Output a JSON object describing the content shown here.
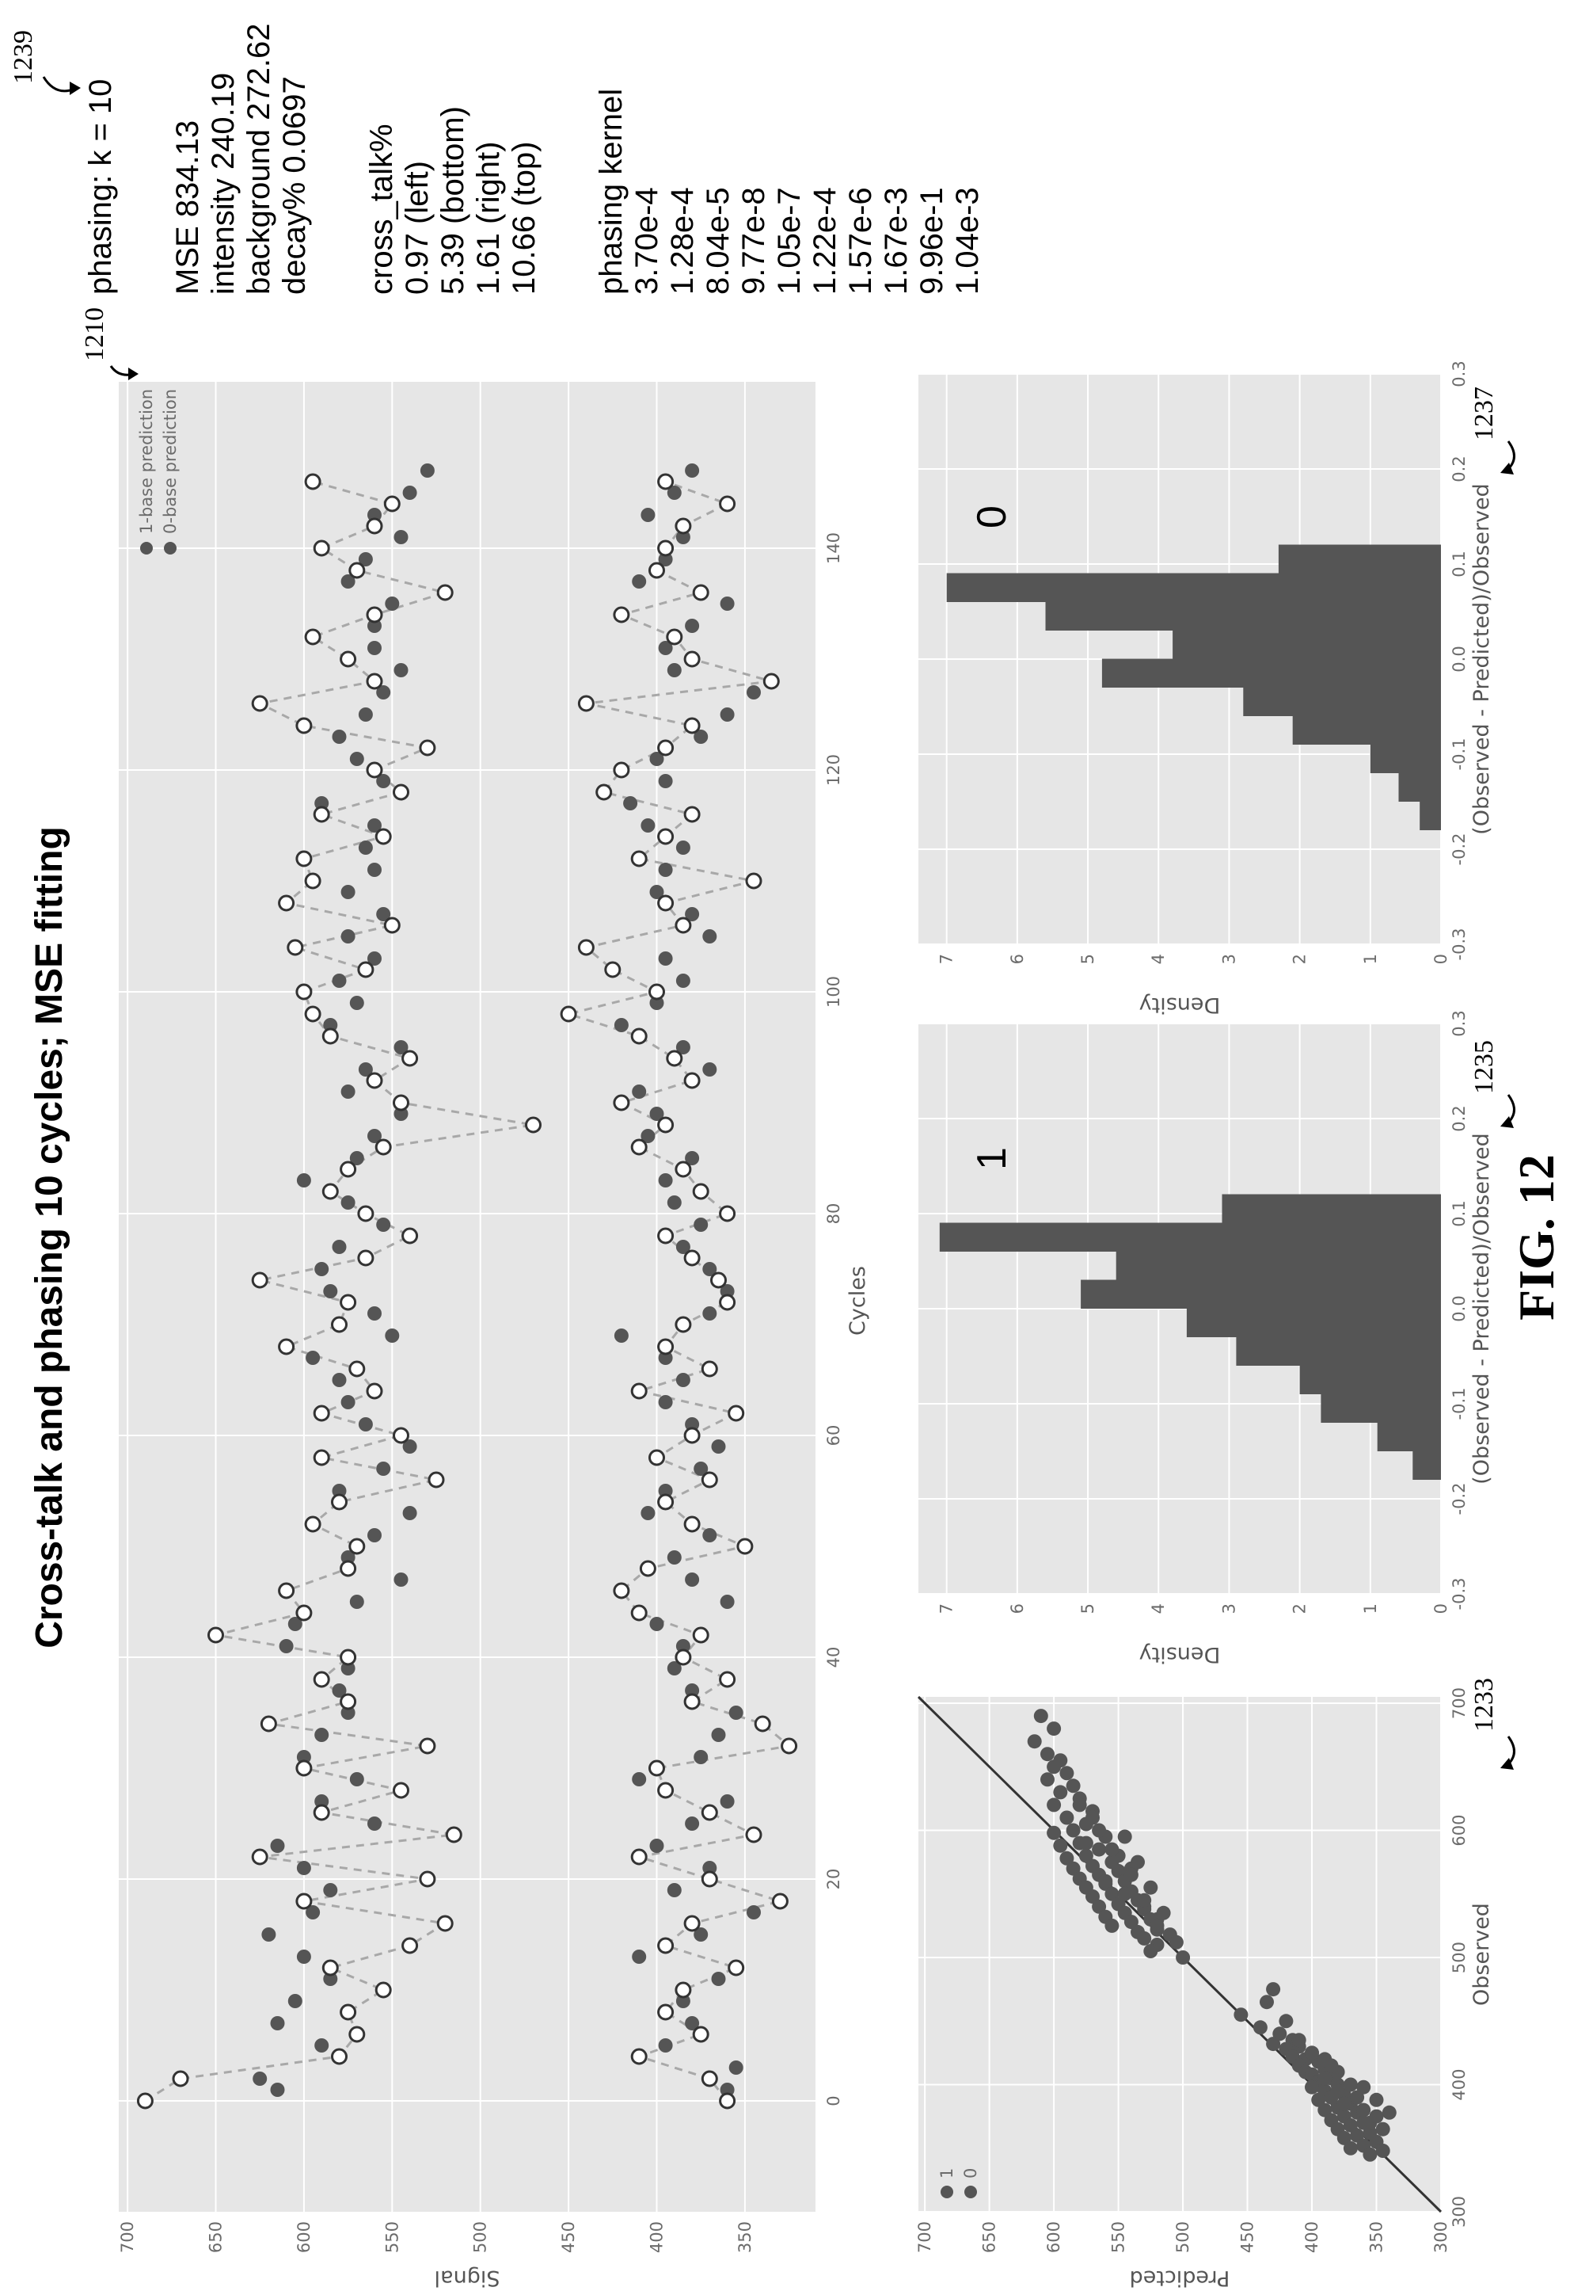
{
  "title": "Cross-talk and phasing 10 cycles; MSE fitting",
  "figure_label": "FIG. 12",
  "reference_numerals": {
    "top_plot": "1210",
    "scatter": "1233",
    "hist_1": "1235",
    "hist_0": "1237",
    "params": "1239"
  },
  "params": {
    "phasing_k": "phasing: k = 10",
    "fit": [
      "MSE 834.13",
      "intensity 240.19",
      "background 272.62",
      "decay% 0.0697"
    ],
    "cross_talk": [
      "cross_talk%",
      "0.97 (left)",
      "5.39 (bottom)",
      "1.61 (right)",
      "10.66 (top)"
    ],
    "phasing_kernel": [
      "phasing kernel",
      "3.70e-4",
      "1.28e-4",
      "8.04e-5",
      "9.77e-8",
      "1.05e-7",
      "1.22e-4",
      "1.57e-6",
      "1.67e-3",
      "9.96e-1",
      "1.04e-3"
    ]
  },
  "colors": {
    "panel_bg": "#e6e6e6",
    "marker": "#555555",
    "bar": "#555555",
    "dashed": "#a8a8a8",
    "fit_line": "#333333"
  },
  "chart_data": [
    {
      "id": "signal_vs_cycles",
      "type": "scatter",
      "xlabel": "Cycles",
      "ylabel": "Signal",
      "xlim": [
        -10,
        155
      ],
      "ylim": [
        310,
        705
      ],
      "xticks": [
        "0",
        "20",
        "40",
        "60",
        "80",
        "100",
        "120",
        "140"
      ],
      "yticks": [
        "350",
        "400",
        "450",
        "500",
        "550",
        "600",
        "650",
        "700"
      ],
      "legend": {
        "position": "top-right",
        "entries": [
          "1-base prediction",
          "0-base prediction"
        ]
      },
      "series": [
        {
          "name": "1-base prediction",
          "style": "filled",
          "x": [
            1,
            2,
            5,
            7,
            9,
            11,
            13,
            15,
            17,
            19,
            21,
            23,
            25,
            27,
            29,
            31,
            33,
            35,
            37,
            39,
            41,
            43,
            45,
            47,
            49,
            51,
            53,
            55,
            57,
            59,
            61,
            63,
            65,
            67,
            69,
            71,
            73,
            75,
            77,
            79,
            81,
            83,
            85,
            87,
            89,
            91,
            93,
            95,
            97,
            99,
            101,
            103,
            105,
            107,
            109,
            111,
            113,
            115,
            117,
            119,
            121,
            123,
            125,
            127,
            129,
            131,
            133,
            135,
            137,
            139,
            141,
            143,
            145,
            147
          ],
          "y": [
            615,
            625,
            590,
            615,
            605,
            585,
            600,
            620,
            595,
            585,
            600,
            615,
            560,
            590,
            570,
            600,
            590,
            575,
            580,
            575,
            610,
            605,
            570,
            545,
            575,
            560,
            540,
            580,
            555,
            540,
            565,
            575,
            580,
            595,
            550,
            560,
            585,
            590,
            580,
            555,
            575,
            600,
            570,
            560,
            545,
            575,
            565,
            545,
            585,
            570,
            580,
            560,
            575,
            555,
            575,
            560,
            565,
            560,
            590,
            555,
            570,
            580,
            565,
            555,
            545,
            560,
            560,
            550,
            575,
            565,
            545,
            560,
            540,
            530
          ]
        },
        {
          "name": "0-base prediction",
          "style": "filled",
          "x": [
            1,
            3,
            5,
            7,
            9,
            11,
            13,
            15,
            17,
            19,
            21,
            23,
            25,
            27,
            29,
            31,
            33,
            35,
            37,
            39,
            41,
            43,
            45,
            47,
            49,
            51,
            53,
            55,
            57,
            59,
            61,
            63,
            65,
            67,
            69,
            71,
            73,
            75,
            77,
            79,
            81,
            83,
            85,
            87,
            89,
            91,
            93,
            95,
            97,
            99,
            101,
            103,
            105,
            107,
            109,
            111,
            113,
            115,
            117,
            119,
            121,
            123,
            125,
            127,
            129,
            131,
            133,
            135,
            137,
            139,
            141,
            143,
            145,
            147
          ],
          "y": [
            360,
            355,
            395,
            380,
            385,
            365,
            410,
            375,
            345,
            390,
            370,
            400,
            380,
            360,
            410,
            375,
            365,
            355,
            380,
            390,
            385,
            400,
            360,
            380,
            390,
            370,
            405,
            395,
            375,
            365,
            380,
            395,
            385,
            395,
            420,
            370,
            360,
            370,
            385,
            375,
            390,
            395,
            380,
            405,
            400,
            410,
            370,
            385,
            420,
            400,
            385,
            395,
            370,
            380,
            400,
            395,
            385,
            405,
            415,
            395,
            400,
            375,
            360,
            345,
            390,
            395,
            380,
            360,
            410,
            395,
            385,
            405,
            390,
            380
          ]
        },
        {
          "name": "1-base observed",
          "style": "open",
          "x": [
            0,
            2,
            4,
            6,
            8,
            10,
            12,
            14,
            16,
            18,
            20,
            22,
            24,
            26,
            28,
            30,
            32,
            34,
            36,
            38,
            40,
            42,
            44,
            46,
            48,
            50,
            52,
            54,
            56,
            58,
            60,
            62,
            64,
            66,
            68,
            70,
            72,
            74,
            76,
            78,
            80,
            82,
            84,
            86,
            88,
            90,
            92,
            94,
            96,
            98,
            100,
            102,
            104,
            106,
            108,
            110,
            112,
            114,
            116,
            118,
            120,
            122,
            124,
            126,
            128,
            130,
            132,
            134,
            136,
            138,
            140,
            142,
            144,
            146
          ],
          "y": [
            690,
            670,
            580,
            570,
            575,
            555,
            585,
            540,
            520,
            600,
            530,
            625,
            515,
            590,
            545,
            600,
            530,
            620,
            575,
            590,
            575,
            650,
            600,
            610,
            575,
            570,
            595,
            580,
            525,
            590,
            545,
            590,
            560,
            570,
            610,
            580,
            575,
            625,
            565,
            540,
            565,
            585,
            575,
            555,
            470,
            545,
            560,
            540,
            585,
            595,
            600,
            565,
            605,
            550,
            610,
            595,
            600,
            555,
            590,
            545,
            560,
            530,
            600,
            625,
            560,
            575,
            595,
            560,
            520,
            570,
            590,
            560,
            550,
            595
          ]
        },
        {
          "name": "0-base observed",
          "style": "open",
          "x": [
            0,
            2,
            4,
            6,
            8,
            10,
            12,
            14,
            16,
            18,
            20,
            22,
            24,
            26,
            28,
            30,
            32,
            34,
            36,
            38,
            40,
            42,
            44,
            46,
            48,
            50,
            52,
            54,
            56,
            58,
            60,
            62,
            64,
            66,
            68,
            70,
            72,
            74,
            76,
            78,
            80,
            82,
            84,
            86,
            88,
            90,
            92,
            94,
            96,
            98,
            100,
            102,
            104,
            106,
            108,
            110,
            112,
            114,
            116,
            118,
            120,
            122,
            124,
            126,
            128,
            130,
            132,
            134,
            136,
            138,
            140,
            142,
            144,
            146
          ],
          "y": [
            360,
            370,
            410,
            375,
            395,
            385,
            355,
            395,
            380,
            330,
            370,
            410,
            345,
            370,
            395,
            400,
            325,
            340,
            380,
            360,
            385,
            375,
            410,
            420,
            405,
            350,
            380,
            395,
            370,
            400,
            380,
            355,
            410,
            370,
            395,
            385,
            360,
            365,
            380,
            395,
            360,
            375,
            385,
            410,
            395,
            420,
            380,
            390,
            410,
            450,
            400,
            425,
            440,
            385,
            395,
            345,
            410,
            395,
            380,
            430,
            420,
            395,
            380,
            440,
            335,
            380,
            390,
            420,
            375,
            400,
            395,
            385,
            360,
            395
          ]
        }
      ]
    },
    {
      "id": "predicted_vs_observed",
      "type": "scatter",
      "xlabel": "Observed",
      "ylabel": "Predicted",
      "xlim": [
        300,
        705
      ],
      "ylim": [
        300,
        705
      ],
      "xticks": [
        "300",
        "400",
        "500",
        "600",
        "700"
      ],
      "yticks": [
        "300",
        "350",
        "400",
        "450",
        "500",
        "550",
        "600",
        "650",
        "700"
      ],
      "legend": {
        "position": "top-left",
        "entries": [
          "1",
          "0"
        ]
      },
      "fit_line": {
        "x": [
          300,
          705
        ],
        "y": [
          300,
          705
        ]
      },
      "series": [
        {
          "name": "1",
          "x": [
            690,
            680,
            670,
            660,
            655,
            650,
            645,
            640,
            635,
            630,
            625,
            620,
            615,
            610,
            605,
            600,
            598,
            595,
            590,
            588,
            585,
            580,
            578,
            575,
            572,
            570,
            568,
            565,
            562,
            560,
            558,
            555,
            552,
            550,
            548,
            545,
            542,
            540,
            538,
            535,
            532,
            530,
            528,
            525,
            522,
            520,
            515,
            510,
            505,
            500,
            600,
            590,
            580,
            570,
            560,
            550,
            540,
            530,
            620,
            610,
            595,
            585,
            575,
            565,
            555,
            545,
            535,
            525,
            518,
            512
          ],
          "y": [
            610,
            600,
            615,
            605,
            595,
            600,
            590,
            605,
            585,
            595,
            580,
            600,
            570,
            590,
            575,
            585,
            600,
            560,
            580,
            595,
            565,
            575,
            590,
            555,
            570,
            585,
            550,
            565,
            580,
            545,
            560,
            575,
            540,
            555,
            570,
            535,
            550,
            565,
            530,
            545,
            560,
            525,
            540,
            555,
            520,
            535,
            530,
            520,
            525,
            500,
            565,
            575,
            550,
            540,
            560,
            545,
            530,
            520,
            580,
            570,
            545,
            555,
            535,
            540,
            525,
            530,
            515,
            520,
            510,
            505
          ]
        },
        {
          "name": "0",
          "x": [
            475,
            465,
            455,
            450,
            445,
            440,
            435,
            432,
            430,
            428,
            425,
            422,
            420,
            418,
            415,
            412,
            410,
            408,
            405,
            402,
            400,
            398,
            395,
            392,
            390,
            388,
            385,
            382,
            380,
            378,
            375,
            372,
            370,
            368,
            365,
            362,
            360,
            358,
            355,
            352,
            350,
            348,
            345,
            420,
            410,
            400,
            390,
            380,
            370,
            395,
            405,
            415,
            385,
            375,
            365,
            425,
            435,
            398,
            388,
            378
          ],
          "y": [
            430,
            435,
            455,
            420,
            440,
            425,
            415,
            430,
            410,
            420,
            400,
            415,
            405,
            395,
            410,
            390,
            405,
            400,
            385,
            395,
            380,
            400,
            390,
            375,
            385,
            395,
            370,
            380,
            390,
            365,
            375,
            385,
            360,
            370,
            380,
            355,
            365,
            375,
            350,
            360,
            370,
            345,
            355,
            390,
            380,
            370,
            365,
            360,
            355,
            380,
            390,
            385,
            375,
            350,
            345,
            400,
            410,
            360,
            350,
            340
          ]
        }
      ]
    },
    {
      "id": "hist_1",
      "type": "bar",
      "panel_label": "1",
      "xlabel": "(Observed - Predicted)/Observed",
      "ylabel": "Density",
      "xlim": [
        -0.3,
        0.3
      ],
      "ylim": [
        0,
        7.4
      ],
      "xticks": [
        "-0.3",
        "-0.2",
        "-0.1",
        "0.0",
        "0.1",
        "0.2",
        "0.3"
      ],
      "yticks": [
        "0",
        "1",
        "2",
        "3",
        "4",
        "5",
        "6",
        "7"
      ],
      "bin_edges": [
        -0.18,
        -0.15,
        -0.12,
        -0.09,
        -0.06,
        -0.03,
        0.0,
        0.03,
        0.06,
        0.09,
        0.12
      ],
      "values": [
        0.4,
        0.9,
        1.7,
        2.0,
        2.9,
        3.6,
        5.1,
        4.6,
        7.1,
        3.1,
        1.2
      ]
    },
    {
      "id": "hist_0",
      "type": "bar",
      "panel_label": "0",
      "xlabel": "(Observed - Predicted)/Observed",
      "ylabel": "Density",
      "xlim": [
        -0.3,
        0.3
      ],
      "ylim": [
        0,
        7.4
      ],
      "xticks": [
        "-0.3",
        "-0.2",
        "-0.1",
        "0.0",
        "0.1",
        "0.2",
        "0.3"
      ],
      "yticks": [
        "0",
        "1",
        "2",
        "3",
        "4",
        "5",
        "6",
        "7"
      ],
      "bin_edges": [
        -0.18,
        -0.15,
        -0.12,
        -0.09,
        -0.06,
        -0.03,
        0.0,
        0.03,
        0.06,
        0.09,
        0.12
      ],
      "values": [
        0.3,
        0.6,
        1.0,
        2.1,
        2.8,
        4.8,
        3.8,
        5.6,
        7.0,
        2.3,
        1.0
      ]
    }
  ]
}
